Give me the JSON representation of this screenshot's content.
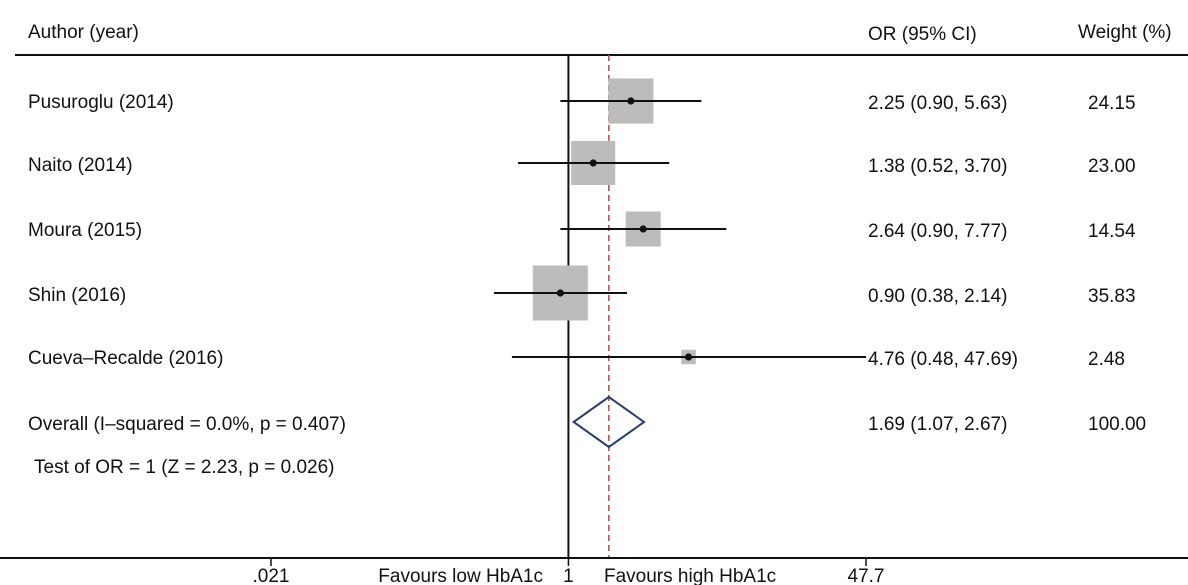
{
  "chart_data": {
    "type": "forest",
    "columns": {
      "study": "Author (year)",
      "estimate": "OR (95% CI)",
      "weight": "Weight (%)"
    },
    "studies": [
      {
        "label": "Pusuroglu (2014)",
        "or": 2.25,
        "lower": 0.9,
        "upper": 5.63,
        "ci_text": "2.25 (0.90, 5.63)",
        "weight": 24.15,
        "weight_text": "24.15"
      },
      {
        "label": "Naito (2014)",
        "or": 1.38,
        "lower": 0.52,
        "upper": 3.7,
        "ci_text": "1.38 (0.52, 3.70)",
        "weight": 23.0,
        "weight_text": "23.00"
      },
      {
        "label": "Moura (2015)",
        "or": 2.64,
        "lower": 0.9,
        "upper": 7.77,
        "ci_text": "2.64 (0.90, 7.77)",
        "weight": 14.54,
        "weight_text": "14.54"
      },
      {
        "label": "Shin (2016)",
        "or": 0.9,
        "lower": 0.38,
        "upper": 2.14,
        "ci_text": "0.90 (0.38, 2.14)",
        "weight": 35.83,
        "weight_text": "35.83"
      },
      {
        "label": "Cueva–Recalde (2016)",
        "or": 4.76,
        "lower": 0.48,
        "upper": 47.69,
        "ci_text": "4.76 (0.48, 47.69)",
        "weight": 2.48,
        "weight_text": "2.48"
      }
    ],
    "overall": {
      "label": "Overall  (I–squared = 0.0%, p = 0.407)",
      "or": 1.69,
      "lower": 1.07,
      "upper": 2.67,
      "ci_text": "1.69 (1.07, 2.67)",
      "weight_text": "100.00"
    },
    "test_text": "Test of OR = 1 (Z = 2.23, p = 0.026)",
    "x_axis": {
      "scale": "log",
      "ticks": [
        {
          "value": 0.021,
          "label": ".021"
        },
        {
          "value": 1,
          "label": "1"
        },
        {
          "value": 47.7,
          "label": "47.7"
        }
      ],
      "xlim": [
        0.021,
        47.7
      ],
      "left_label": "Favours low HbA1c",
      "right_label": "Favours high HbA1c"
    },
    "null_line": 1,
    "pooled_line": 1.69,
    "colors": {
      "weight_box": "#bcbcbc",
      "diamond": "#2b3e6e",
      "pooled_line": "#c0504d",
      "ink": "#111111"
    }
  }
}
